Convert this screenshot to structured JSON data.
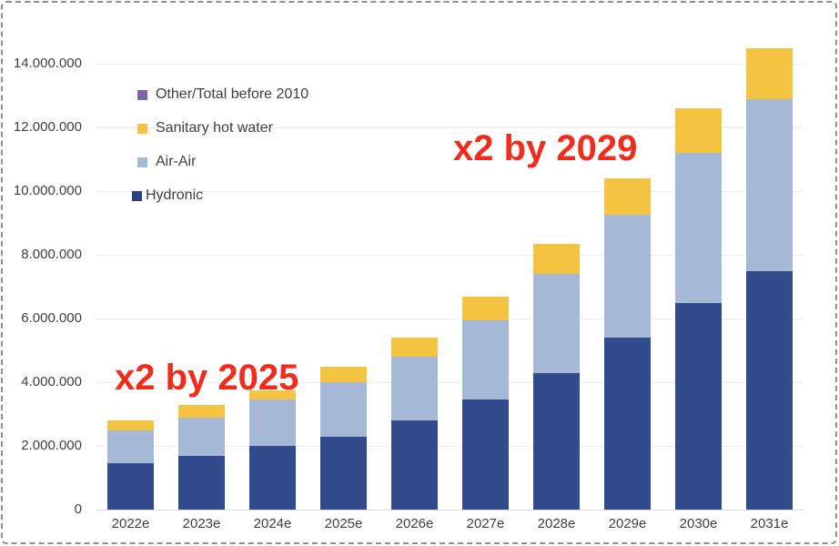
{
  "colors": {
    "hydronic": "#314b8c",
    "air_air": "#a5b9d6",
    "sanitary_hot_water": "#f3c341",
    "other": "#7c64a5",
    "annotation_red": "#f02c1c"
  },
  "legend": {
    "items": [
      {
        "label": "Other/Total before 2010",
        "color": "#7c64a5"
      },
      {
        "label": "Sanitary hot water",
        "color": "#f3c341"
      },
      {
        "label": "Air-Air",
        "color": "#a5b9d6"
      },
      {
        "label": "Hydronic",
        "color": "#2a4380"
      }
    ]
  },
  "chart_data": {
    "type": "bar",
    "stacked": true,
    "title": "",
    "xlabel": "",
    "ylabel": "",
    "ylim": [
      0,
      14500000
    ],
    "grid": "horizontal",
    "legend_position": "inside-top-left",
    "categories": [
      "2022e",
      "2023e",
      "2024e",
      "2025e",
      "2026e",
      "2027e",
      "2028e",
      "2029e",
      "2030e",
      "2031e"
    ],
    "series": [
      {
        "name": "Hydronic",
        "color": "#314b8c",
        "values": [
          1450000,
          1700000,
          2000000,
          2300000,
          2800000,
          3450000,
          4300000,
          5400000,
          6500000,
          7500000
        ]
      },
      {
        "name": "Air-Air",
        "color": "#a5b9d6",
        "values": [
          1050000,
          1200000,
          1450000,
          1700000,
          2000000,
          2500000,
          3100000,
          3850000,
          4700000,
          5400000
        ]
      },
      {
        "name": "Sanitary hot water",
        "color": "#f3c341",
        "values": [
          300000,
          400000,
          300000,
          500000,
          600000,
          750000,
          950000,
          1150000,
          1400000,
          1600000
        ]
      },
      {
        "name": "Other/Total before 2010",
        "color": "#7c64a5",
        "values": [
          0,
          0,
          0,
          0,
          0,
          0,
          0,
          0,
          0,
          0
        ]
      }
    ],
    "y_ticks": [
      {
        "value": 0,
        "label": "0"
      },
      {
        "value": 2000000,
        "label": "2.000.000"
      },
      {
        "value": 4000000,
        "label": "4.000.000"
      },
      {
        "value": 6000000,
        "label": "6.000.000"
      },
      {
        "value": 8000000,
        "label": "8.000.000"
      },
      {
        "value": 10000000,
        "label": "10.000.000"
      },
      {
        "value": 12000000,
        "label": "12.000.000"
      },
      {
        "value": 14000000,
        "label": "14.000.000"
      }
    ],
    "annotations": [
      {
        "text": "x2 by 2025"
      },
      {
        "text": "x2 by 2029"
      }
    ]
  }
}
